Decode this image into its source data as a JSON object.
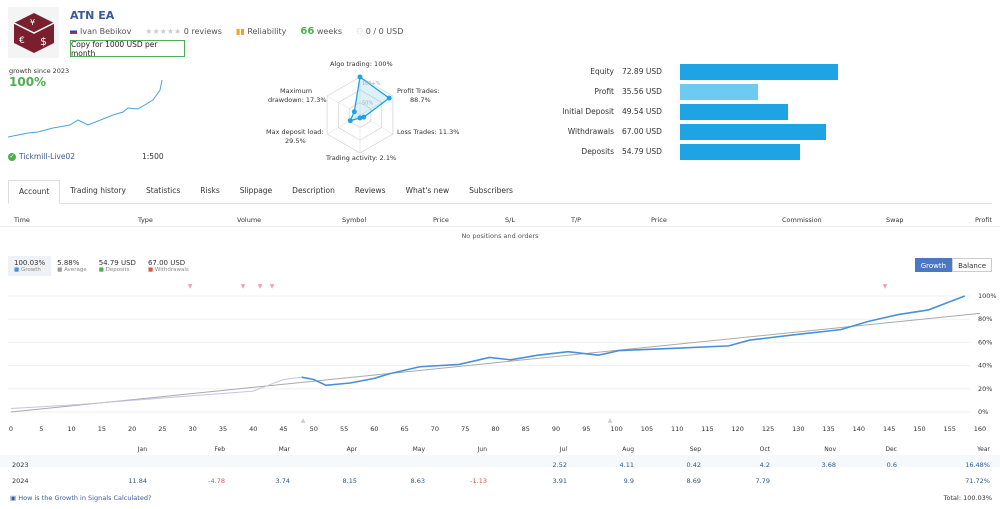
{
  "header": {
    "title": "ATN EA",
    "author": "Ivan Bebikov",
    "reviews": "0 reviews",
    "reliability": "Reliability",
    "weeks_num": "66",
    "weeks_label": "weeks",
    "subscribers_funds": "0 / 0 USD",
    "copy_button": "Copy for 1000 USD per month"
  },
  "summary": {
    "growth_label": "growth since 2023",
    "growth_value": "100%",
    "broker": "Tickmill-Live02",
    "leverage": "1:500"
  },
  "radar": {
    "labels": [
      "Algo trading: 100%",
      "Profit Trades:",
      "88.7%",
      "Loss Trades: 11.3%",
      "Trading activity: 2.1%",
      "Max deposit load:",
      "29.5%",
      "Maximum",
      "drawdown: 17.3%"
    ],
    "values": {
      "algo": 100,
      "profit": 88.7,
      "loss": 11.3,
      "activity": 2.1,
      "load": 29.5,
      "drawdown": 17.3
    },
    "grid_labels": [
      "100+%",
      "50%"
    ]
  },
  "balance_stats": [
    {
      "label": "Equity",
      "value": "72.89 USD",
      "fill": 0.83,
      "color": "#1ea4e4"
    },
    {
      "label": "Profit",
      "value": "35.56 USD",
      "fill": 0.41,
      "color": "#6dcaf0"
    },
    {
      "label": "Initial Deposit",
      "value": "49.54 USD",
      "fill": 0.57,
      "color": "#1ea4e4"
    },
    {
      "label": "Withdrawals",
      "value": "67.00 USD",
      "fill": 0.77,
      "color": "#1ea4e4"
    },
    {
      "label": "Deposits",
      "value": "54.79 USD",
      "fill": 0.63,
      "color": "#1ea4e4"
    }
  ],
  "tabs": [
    "Account",
    "Trading history",
    "Statistics",
    "Risks",
    "Slippage",
    "Description",
    "Reviews",
    "What's new",
    "Subscribers"
  ],
  "positions": {
    "columns": [
      "Time",
      "Type",
      "Volume",
      "Symbol",
      "Price",
      "S/L",
      "T/P",
      "Price",
      "Commission",
      "Swap",
      "Profit"
    ],
    "empty": "No positions and orders"
  },
  "legend": [
    {
      "value": "100.03%",
      "label": "Growth",
      "color": "#4a90d9"
    },
    {
      "value": "5.88%",
      "label": "Average",
      "color": "#999999"
    },
    {
      "value": "54.79 USD",
      "label": "Deposits",
      "color": "#4caf50"
    },
    {
      "value": "67.00 USD",
      "label": "Withdrawals",
      "color": "#e05a3a"
    }
  ],
  "chart_buttons": [
    "Growth",
    "Balance"
  ],
  "chart_data": {
    "type": "line",
    "ylim": [
      0,
      100
    ],
    "xlim": [
      0,
      160
    ],
    "y_ticks": [
      "0%",
      "20%",
      "40%",
      "60%",
      "80%",
      "100%"
    ],
    "x_ticks": [
      "0",
      "5",
      "10",
      "15",
      "20",
      "25",
      "30",
      "35",
      "40",
      "45",
      "50",
      "55",
      "60",
      "65",
      "70",
      "75",
      "80",
      "85",
      "90",
      "95",
      "100",
      "105",
      "110",
      "115",
      "120",
      "125",
      "130",
      "135",
      "140",
      "145",
      "150",
      "155",
      "160"
    ],
    "series": [
      {
        "name": "Growth",
        "color": "#4a90d9",
        "x": [
          48,
          50,
          52,
          56,
          60,
          62.5,
          67.5,
          74,
          79,
          82.5,
          87,
          92,
          97,
          100.5,
          110,
          118.5,
          122,
          130,
          137,
          141.5,
          146.5,
          151.5,
          155,
          157.5
        ],
        "y": [
          30,
          28,
          23,
          25,
          29,
          33,
          39,
          41,
          47,
          45,
          49,
          52,
          49,
          53,
          55,
          57,
          62,
          67,
          71,
          78,
          84,
          88,
          95,
          100
        ]
      },
      {
        "name": "pre",
        "color": "#c7c3e6",
        "x": [
          0,
          10,
          20,
          30,
          40,
          45,
          48
        ],
        "y": [
          3,
          6,
          10,
          14,
          18,
          28,
          30
        ]
      },
      {
        "name": "Average",
        "color": "#aaaaaa",
        "x": [
          0,
          160
        ],
        "y": [
          0,
          85
        ]
      }
    ]
  },
  "monthly": {
    "months": [
      "Jan",
      "Feb",
      "Mar",
      "Apr",
      "May",
      "Jun",
      "Jul",
      "Aug",
      "Sep",
      "Oct",
      "Nov",
      "Dec",
      "Year"
    ],
    "rows": [
      {
        "year": "2023",
        "values": [
          "",
          "",
          "",
          "",
          "",
          "",
          "2.52",
          "4.11",
          "0.42",
          "4.2",
          "3.68",
          "0.6",
          "16.48%"
        ]
      },
      {
        "year": "2024",
        "values": [
          "11.84",
          "-4.78",
          "3.74",
          "8.15",
          "8.63",
          "-1.13",
          "3.91",
          "9.9",
          "8.69",
          "7.79",
          "",
          "",
          "71.72%"
        ]
      }
    ]
  },
  "footer": {
    "link": "How is the Growth in Signals Calculated?",
    "total": "Total: 100.03%"
  }
}
